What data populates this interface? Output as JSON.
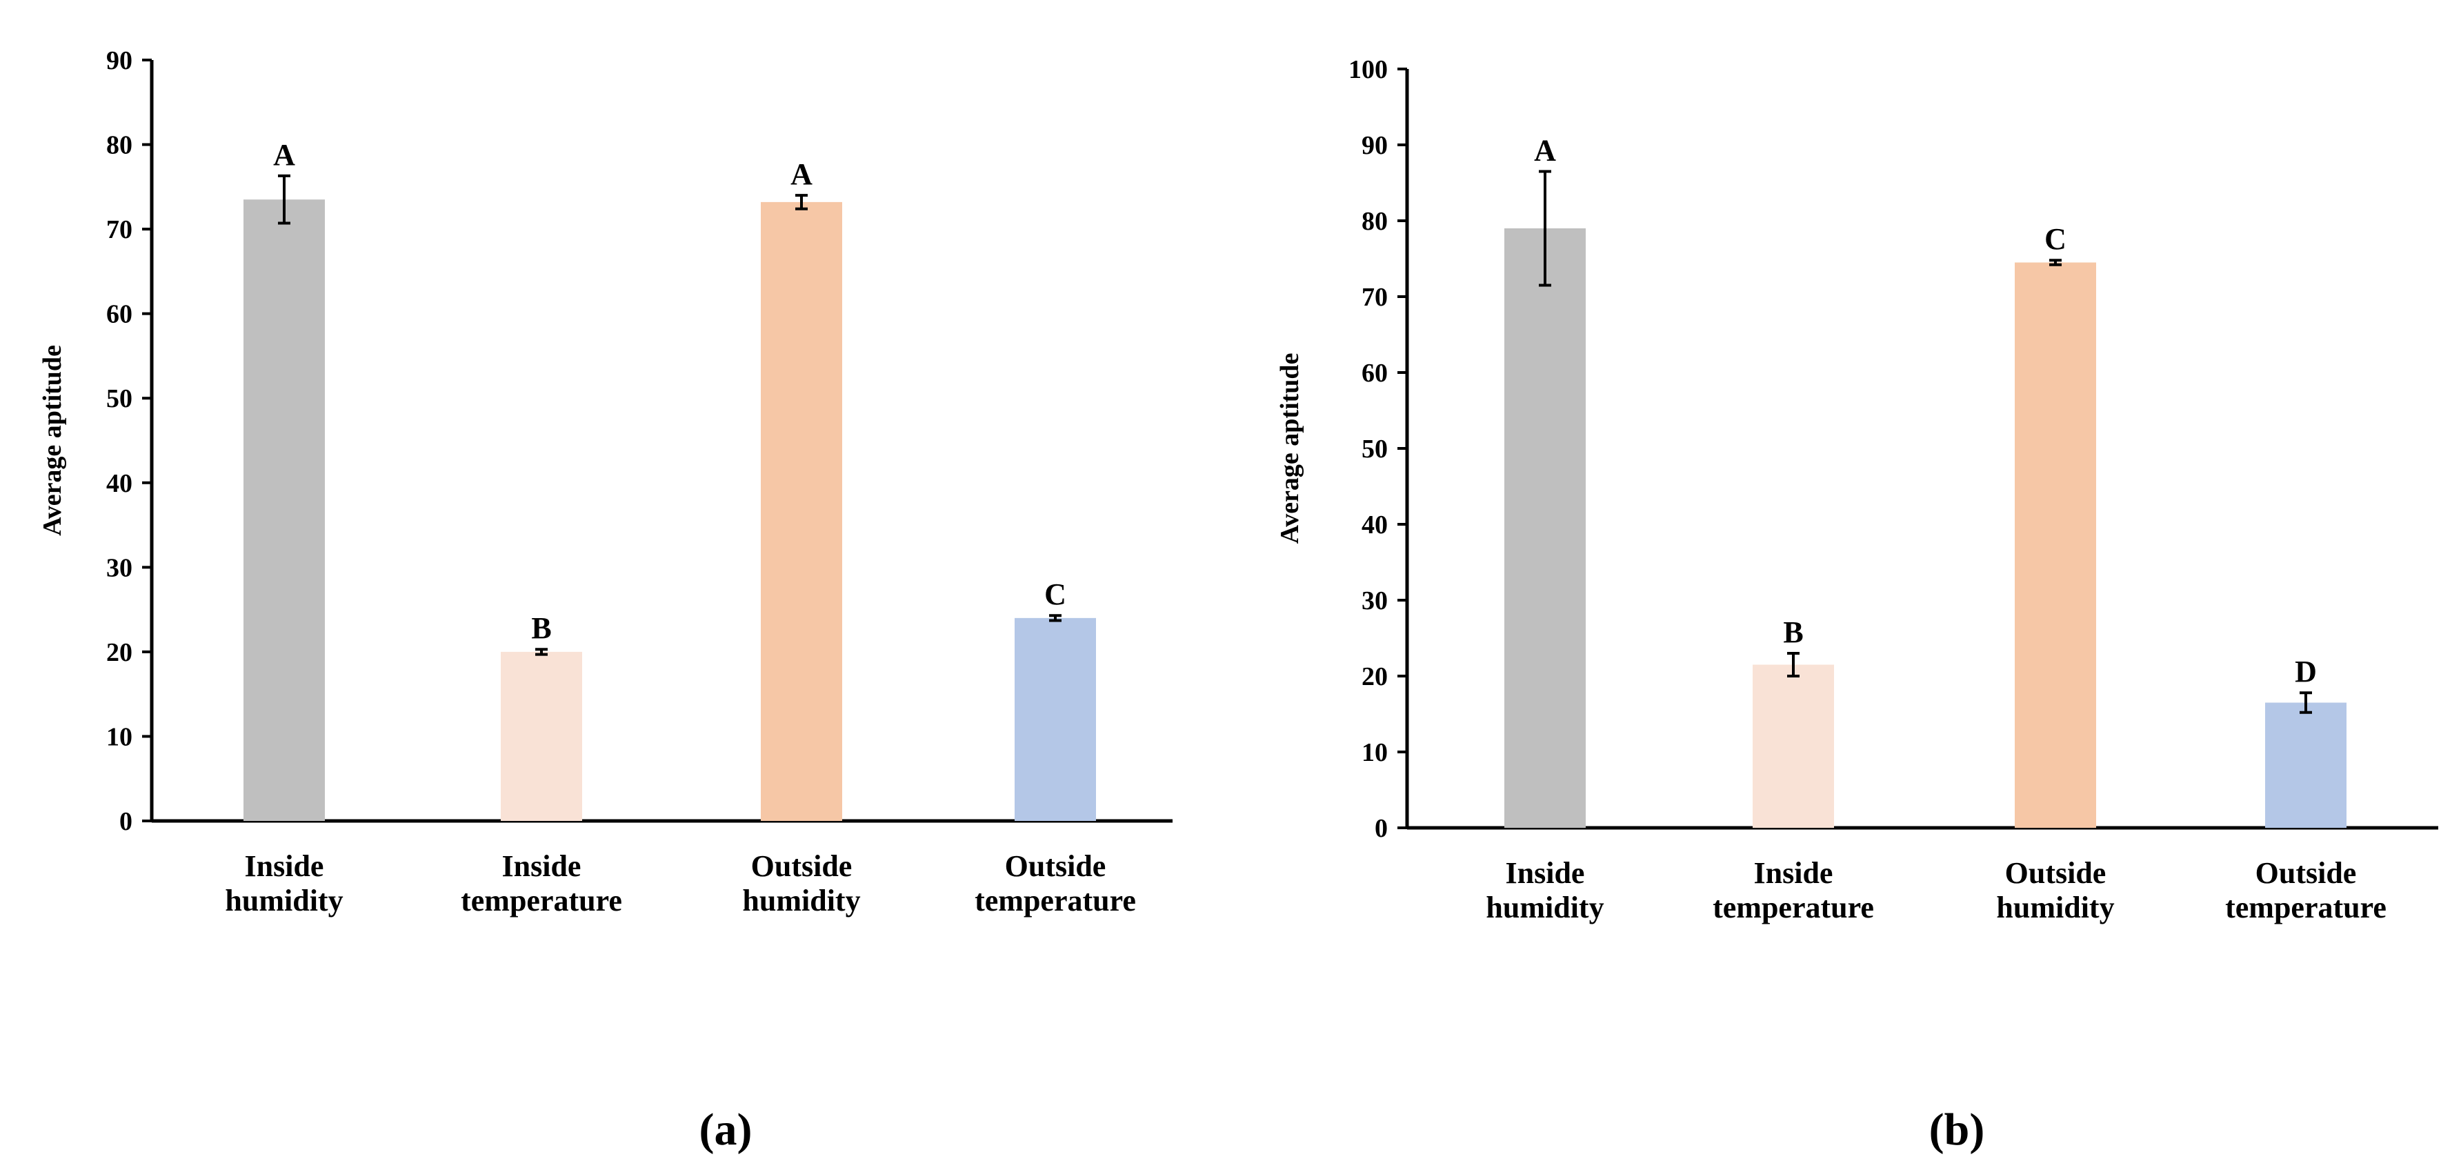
{
  "colors": {
    "inside_humidity": "#bfbfbf",
    "inside_temperature": "#f9e2d6",
    "outside_humidity": "#f6c7a6",
    "outside_temperature": "#b4c7e7",
    "axis": "#000000"
  },
  "chart_data": [
    {
      "panel": "a",
      "panel_label": "(a)",
      "type": "bar",
      "title": "",
      "xlabel": "",
      "ylabel": "Average aptitude",
      "ylim": [
        0,
        90
      ],
      "ytick_step": 10,
      "yticks": [
        "0",
        "10",
        "20",
        "30",
        "40",
        "50",
        "60",
        "70",
        "80",
        "90"
      ],
      "categories": [
        [
          "Inside",
          "humidity"
        ],
        [
          "Inside",
          "temperature"
        ],
        [
          "Outside",
          "humidity"
        ],
        [
          "Outside",
          "temperature"
        ]
      ],
      "values": [
        73.5,
        20,
        73.2,
        24
      ],
      "errors": [
        2.8,
        0.3,
        0.8,
        0.3
      ],
      "significance": [
        "A",
        "B",
        "A",
        "C"
      ],
      "grid": false,
      "legend": "none"
    },
    {
      "panel": "b",
      "panel_label": "(b)",
      "type": "bar",
      "title": "",
      "xlabel": "",
      "ylabel": "Average aptitude",
      "ylim": [
        0,
        100
      ],
      "ytick_step": 10,
      "yticks": [
        "0",
        "10",
        "20",
        "30",
        "40",
        "50",
        "60",
        "70",
        "80",
        "90",
        "100"
      ],
      "categories": [
        [
          "Inside",
          "humidity"
        ],
        [
          "Inside",
          "temperature"
        ],
        [
          "Outside",
          "humidity"
        ],
        [
          "Outside",
          "temperature"
        ]
      ],
      "values": [
        79,
        21.5,
        74.5,
        16.5
      ],
      "errors": [
        7.5,
        1.5,
        0.3,
        1.3
      ],
      "significance": [
        "A",
        "B",
        "C",
        "D"
      ],
      "grid": false,
      "legend": "none"
    }
  ]
}
